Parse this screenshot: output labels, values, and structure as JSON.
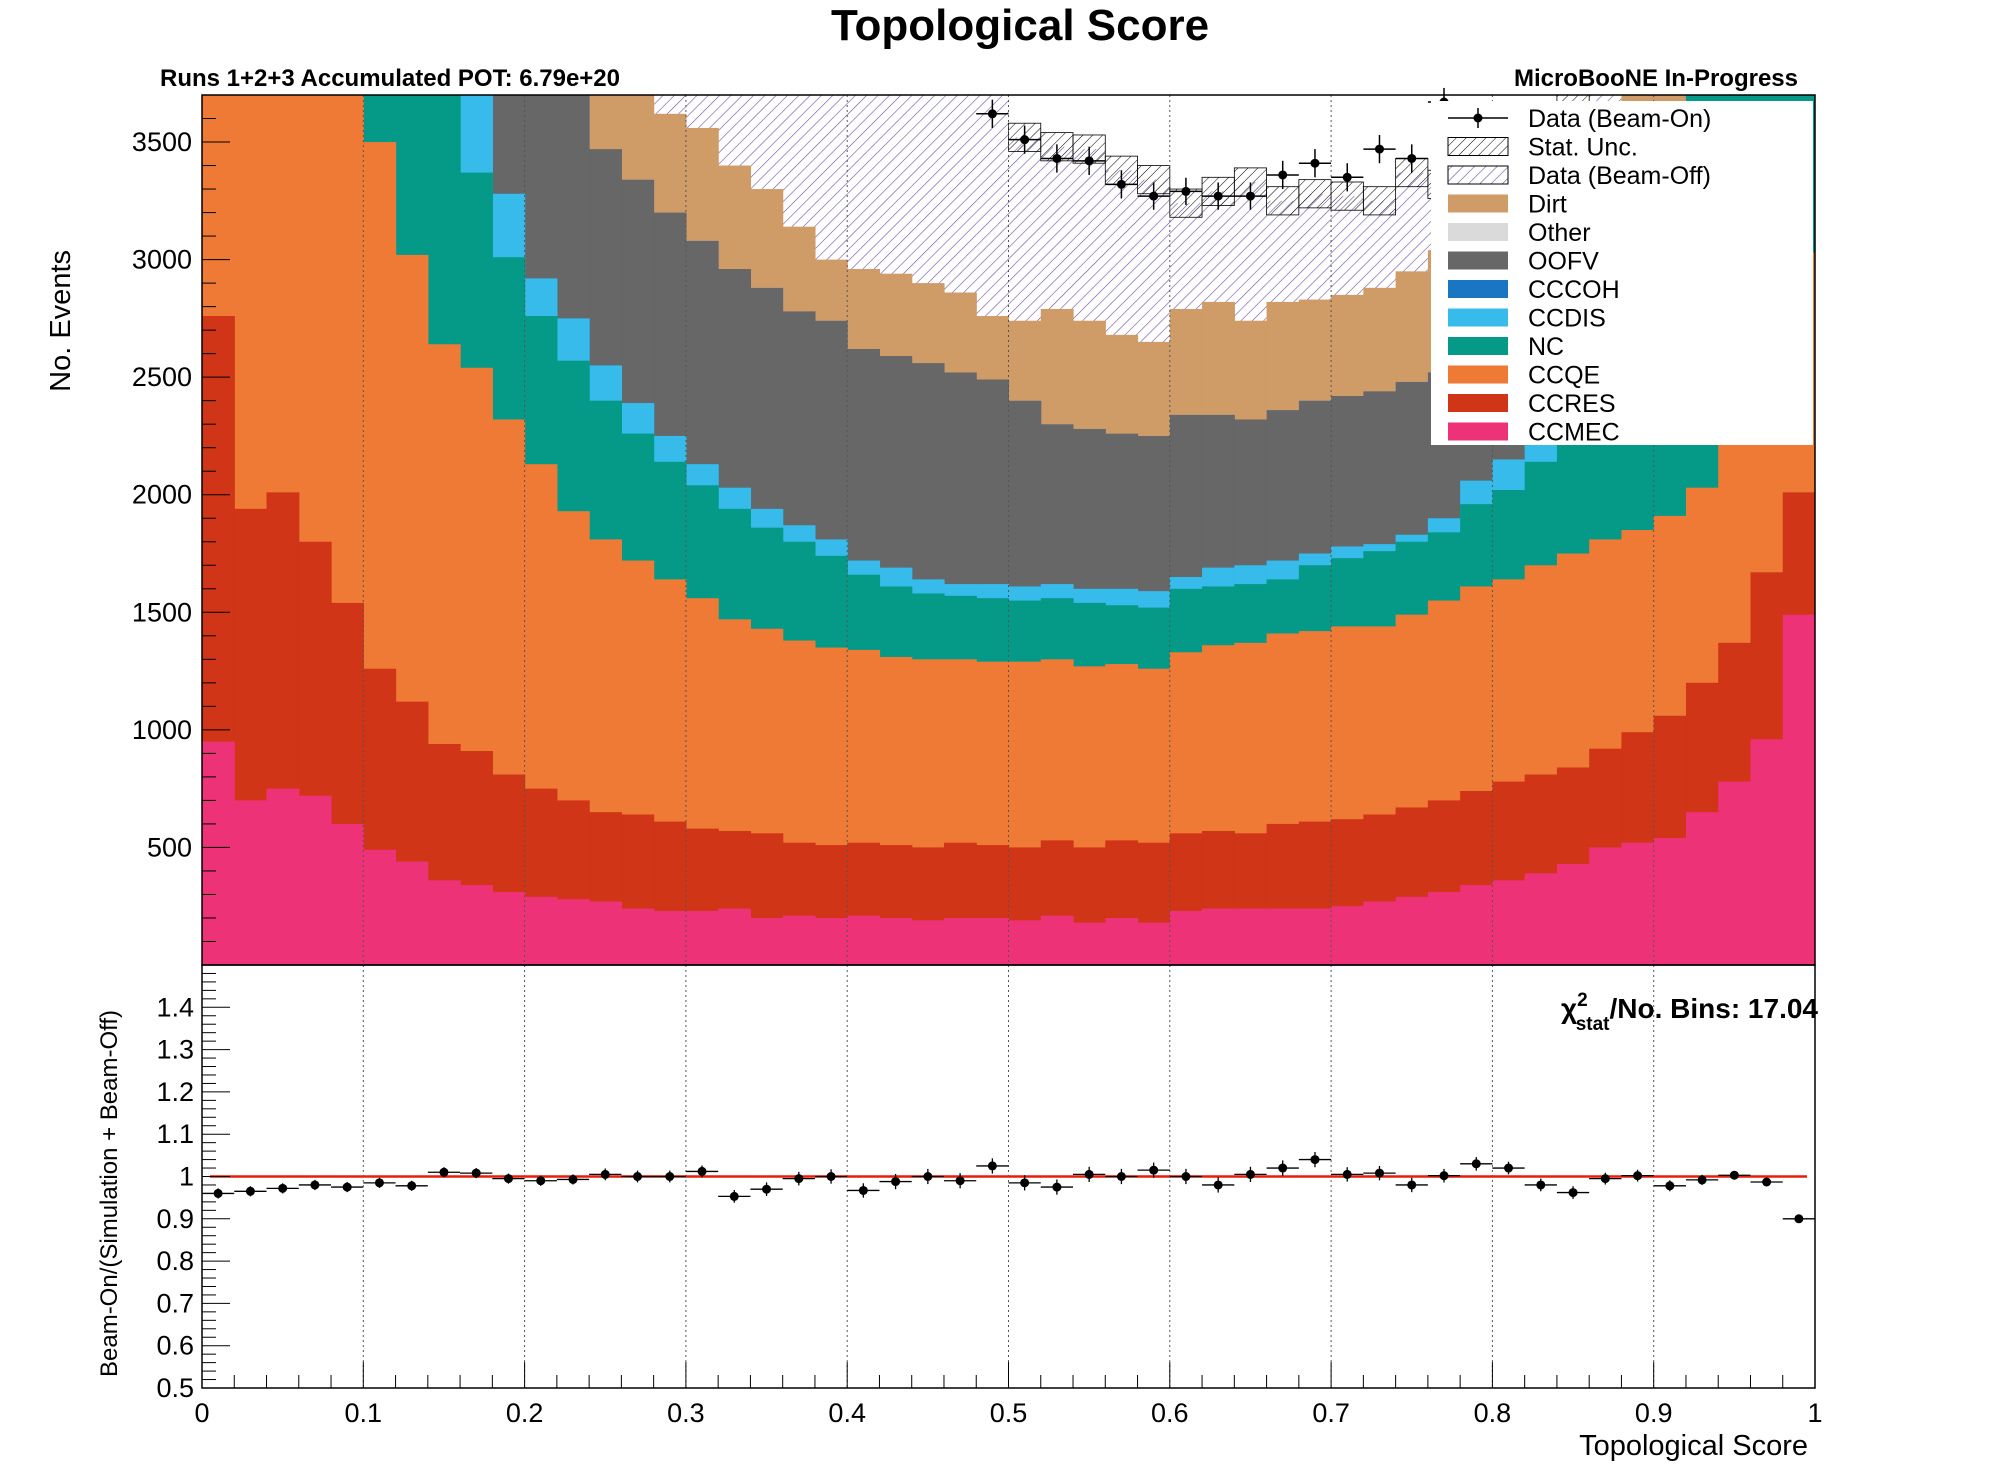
{
  "title": "Topological Score",
  "top_left_label": "Runs 1+2+3 Accumulated POT: 6.79e+20",
  "top_right_label": "MicroBooNE In-Progress",
  "chi2": {
    "symbol": "χ",
    "sup": "2",
    "sub": "stat",
    "rest": "/No. Bins: 17.04"
  },
  "colors": {
    "Dirt": "#cf9b67",
    "Other": "#dadada",
    "OOFV": "#676767",
    "CCCOH": "#1976c2",
    "CCDIS": "#37bbea",
    "NC": "#049a87",
    "CCQE": "#ee7a36",
    "CCRES": "#cf3516",
    "CCMEC": "#ee3277",
    "unity_line": "#e81d0b",
    "beam_off_hatch": "#6e4fa8"
  },
  "chart_data": [
    {
      "type": "area",
      "subtype": "stacked-histogram",
      "xlabel": "",
      "ylabel": "No. Events",
      "xlim": [
        0,
        1
      ],
      "ylim": [
        0,
        3700
      ],
      "y_ticks": [
        500,
        1000,
        1500,
        2000,
        2500,
        3000,
        3500
      ],
      "grid": "x-dotted",
      "legend_position": "top-right",
      "bin_edges_start": 0.0,
      "bin_width": 0.02,
      "n_bins": 50,
      "legend": [
        "Data (Beam-On)",
        "Stat. Unc.",
        "Data (Beam-Off)",
        "Dirt",
        "Other",
        "OOFV",
        "CCCOH",
        "CCDIS",
        "NC",
        "CCQE",
        "CCRES",
        "CCMEC"
      ],
      "stack_order_bottom_to_top": [
        "CCMEC",
        "CCRES",
        "CCQE",
        "NC",
        "CCDIS",
        "CCCOH",
        "OOFV",
        "Other",
        "Dirt",
        "Data (Beam-Off)"
      ],
      "series": [
        {
          "name": "CCMEC",
          "cum": [
            950,
            700,
            750,
            720,
            600,
            490,
            440,
            360,
            340,
            310,
            290,
            280,
            270,
            240,
            230,
            230,
            240,
            200,
            210,
            200,
            210,
            200,
            190,
            200,
            200,
            190,
            210,
            180,
            200,
            180,
            230,
            240,
            240,
            240,
            240,
            250,
            270,
            290,
            310,
            340,
            360,
            390,
            430,
            500,
            520,
            540,
            650,
            780,
            960,
            1490
          ]
        },
        {
          "name": "CCRES",
          "cum": [
            2760,
            1940,
            2010,
            1800,
            1540,
            1260,
            1120,
            940,
            910,
            810,
            750,
            700,
            650,
            640,
            610,
            580,
            570,
            560,
            520,
            510,
            520,
            510,
            500,
            520,
            510,
            500,
            530,
            500,
            530,
            520,
            560,
            570,
            560,
            600,
            610,
            620,
            640,
            670,
            700,
            740,
            780,
            810,
            840,
            920,
            990,
            1060,
            1200,
            1370,
            1670,
            2010
          ]
        },
        {
          "name": "CCQE",
          "cum": [
            3700,
            3700,
            3700,
            3700,
            3700,
            3500,
            3020,
            2640,
            2540,
            2320,
            2130,
            1930,
            1810,
            1720,
            1640,
            1560,
            1470,
            1430,
            1380,
            1350,
            1340,
            1310,
            1300,
            1300,
            1290,
            1290,
            1300,
            1270,
            1280,
            1260,
            1330,
            1360,
            1370,
            1410,
            1420,
            1440,
            1440,
            1490,
            1550,
            1610,
            1640,
            1700,
            1750,
            1810,
            1850,
            1910,
            2030,
            2230,
            2620,
            3030
          ]
        },
        {
          "name": "NC",
          "cum": [
            3700,
            3700,
            3700,
            3700,
            3700,
            3700,
            3700,
            3700,
            3370,
            3010,
            2760,
            2570,
            2400,
            2260,
            2140,
            2040,
            1940,
            1860,
            1800,
            1740,
            1660,
            1610,
            1580,
            1570,
            1560,
            1550,
            1560,
            1540,
            1530,
            1520,
            1600,
            1610,
            1620,
            1640,
            1700,
            1730,
            1760,
            1800,
            1840,
            1960,
            2020,
            2140,
            2280,
            2470,
            2800,
            3300,
            3700,
            3700,
            3700,
            3700
          ]
        },
        {
          "name": "CCDIS",
          "cum": [
            3700,
            3700,
            3700,
            3700,
            3700,
            3700,
            3700,
            3700,
            3700,
            3280,
            2920,
            2750,
            2550,
            2390,
            2250,
            2130,
            2030,
            1940,
            1870,
            1810,
            1720,
            1690,
            1640,
            1620,
            1620,
            1610,
            1620,
            1600,
            1600,
            1590,
            1650,
            1690,
            1700,
            1720,
            1750,
            1780,
            1790,
            1830,
            1900,
            2060,
            2150,
            2260,
            2410,
            2600,
            2900,
            3500,
            3700,
            3700,
            3700,
            3700
          ]
        },
        {
          "name": "CCCOH",
          "cum": [
            3700,
            3700,
            3700,
            3700,
            3700,
            3700,
            3700,
            3700,
            3700,
            3280,
            2920,
            2750,
            2550,
            2390,
            2250,
            2130,
            2030,
            1940,
            1870,
            1810,
            1720,
            1690,
            1640,
            1620,
            1620,
            1610,
            1620,
            1600,
            1600,
            1590,
            1650,
            1690,
            1700,
            1720,
            1750,
            1780,
            1790,
            1830,
            1900,
            2060,
            2150,
            2260,
            2410,
            2600,
            2900,
            3500,
            3700,
            3700,
            3700,
            3700
          ]
        },
        {
          "name": "OOFV",
          "cum": [
            3700,
            3700,
            3700,
            3700,
            3700,
            3700,
            3700,
            3700,
            3700,
            3700,
            3700,
            3700,
            3470,
            3340,
            3200,
            3080,
            2960,
            2880,
            2780,
            2740,
            2620,
            2590,
            2560,
            2520,
            2490,
            2400,
            2300,
            2280,
            2260,
            2250,
            2340,
            2340,
            2320,
            2360,
            2400,
            2420,
            2440,
            2480,
            2520,
            2600,
            2700,
            2800,
            2900,
            3000,
            3100,
            3200,
            3700,
            3700,
            3700,
            3700
          ]
        },
        {
          "name": "Other",
          "cum": [
            3700,
            3700,
            3700,
            3700,
            3700,
            3700,
            3700,
            3700,
            3700,
            3700,
            3700,
            3700,
            3470,
            3340,
            3200,
            3080,
            2960,
            2880,
            2780,
            2740,
            2620,
            2590,
            2560,
            2520,
            2490,
            2400,
            2300,
            2280,
            2260,
            2250,
            2340,
            2340,
            2320,
            2360,
            2400,
            2420,
            2440,
            2480,
            2520,
            2600,
            2700,
            2800,
            2900,
            3000,
            3100,
            3200,
            3700,
            3700,
            3700,
            3700
          ]
        },
        {
          "name": "Dirt",
          "cum": [
            3700,
            3700,
            3700,
            3700,
            3700,
            3700,
            3700,
            3700,
            3700,
            3700,
            3700,
            3700,
            3700,
            3700,
            3620,
            3560,
            3400,
            3300,
            3140,
            3000,
            2960,
            2940,
            2900,
            2860,
            2760,
            2740,
            2790,
            2740,
            2680,
            2650,
            2790,
            2820,
            2740,
            2820,
            2830,
            2850,
            2880,
            2950,
            3040,
            3100,
            3200,
            3260,
            3400,
            3600,
            3700,
            3700,
            3700,
            3700,
            3700,
            3700
          ]
        },
        {
          "name": "Data (Beam-Off)",
          "cum": [
            3700,
            3700,
            3700,
            3700,
            3700,
            3700,
            3700,
            3700,
            3700,
            3700,
            3700,
            3700,
            3700,
            3700,
            3700,
            3700,
            3700,
            3700,
            3700,
            3700,
            3700,
            3700,
            3700,
            3700,
            3700,
            3520,
            3480,
            3470,
            3380,
            3340,
            3240,
            3290,
            3330,
            3250,
            3280,
            3270,
            3250,
            3370,
            3320,
            3420,
            3450,
            3490,
            3650,
            3700,
            3700,
            3700,
            3700,
            3700,
            3700,
            3700
          ]
        }
      ],
      "data_beam_on": [
        {
          "x": 0.49,
          "y": 3620,
          "err": 60
        },
        {
          "x": 0.51,
          "y": 3510,
          "err": 60
        },
        {
          "x": 0.53,
          "y": 3430,
          "err": 60
        },
        {
          "x": 0.55,
          "y": 3420,
          "err": 60
        },
        {
          "x": 0.57,
          "y": 3320,
          "err": 60
        },
        {
          "x": 0.59,
          "y": 3270,
          "err": 58
        },
        {
          "x": 0.61,
          "y": 3290,
          "err": 58
        },
        {
          "x": 0.63,
          "y": 3270,
          "err": 58
        },
        {
          "x": 0.65,
          "y": 3270,
          "err": 58
        },
        {
          "x": 0.67,
          "y": 3360,
          "err": 60
        },
        {
          "x": 0.69,
          "y": 3410,
          "err": 60
        },
        {
          "x": 0.71,
          "y": 3350,
          "err": 60
        },
        {
          "x": 0.73,
          "y": 3470,
          "err": 60
        },
        {
          "x": 0.75,
          "y": 3430,
          "err": 60
        },
        {
          "x": 0.77,
          "y": 3670,
          "err": 60
        }
      ]
    },
    {
      "type": "scatter",
      "xlabel": "Topological Score",
      "ylabel": "Beam-On/(Simulation + Beam-Off)",
      "xlim": [
        0,
        1
      ],
      "ylim": [
        0.5,
        1.5
      ],
      "x_ticks": [
        "0",
        "0.1",
        "0.2",
        "0.3",
        "0.4",
        "0.5",
        "0.6",
        "0.7",
        "0.8",
        "0.9",
        "1"
      ],
      "y_ticks": [
        "0.5",
        "0.6",
        "0.7",
        "0.8",
        "0.9",
        "1",
        "1.1",
        "1.2",
        "1.3",
        "1.4"
      ],
      "grid": "x-dotted",
      "reference_line": 1.0,
      "x": [
        0.01,
        0.03,
        0.05,
        0.07,
        0.09,
        0.11,
        0.13,
        0.15,
        0.17,
        0.19,
        0.21,
        0.23,
        0.25,
        0.27,
        0.29,
        0.31,
        0.33,
        0.35,
        0.37,
        0.39,
        0.41,
        0.43,
        0.45,
        0.47,
        0.49,
        0.51,
        0.53,
        0.55,
        0.57,
        0.59,
        0.61,
        0.63,
        0.65,
        0.67,
        0.69,
        0.71,
        0.73,
        0.75,
        0.77,
        0.79,
        0.81,
        0.83,
        0.85,
        0.87,
        0.89,
        0.91,
        0.93,
        0.95,
        0.97,
        0.99
      ],
      "ratio": [
        0.96,
        0.965,
        0.972,
        0.98,
        0.975,
        0.985,
        0.978,
        1.01,
        1.008,
        0.995,
        0.99,
        0.993,
        1.005,
        1.0,
        1.0,
        1.012,
        0.953,
        0.97,
        0.995,
        1.0,
        0.967,
        0.988,
        1.0,
        0.99,
        1.025,
        0.985,
        0.975,
        1.005,
        1.0,
        1.015,
        1.0,
        0.98,
        1.005,
        1.02,
        1.04,
        1.005,
        1.008,
        0.98,
        1.002,
        1.03,
        1.02,
        0.98,
        0.962,
        0.995,
        1.002,
        0.978,
        0.992,
        1.003,
        0.987,
        0.9
      ],
      "err": [
        0.012,
        0.012,
        0.012,
        0.012,
        0.012,
        0.012,
        0.012,
        0.012,
        0.012,
        0.012,
        0.012,
        0.012,
        0.014,
        0.014,
        0.014,
        0.014,
        0.015,
        0.016,
        0.016,
        0.017,
        0.017,
        0.018,
        0.018,
        0.018,
        0.018,
        0.018,
        0.018,
        0.018,
        0.018,
        0.018,
        0.018,
        0.018,
        0.018,
        0.018,
        0.018,
        0.017,
        0.017,
        0.017,
        0.016,
        0.016,
        0.015,
        0.015,
        0.015,
        0.014,
        0.014,
        0.013,
        0.012,
        0.01,
        0.008,
        0.005
      ]
    }
  ]
}
